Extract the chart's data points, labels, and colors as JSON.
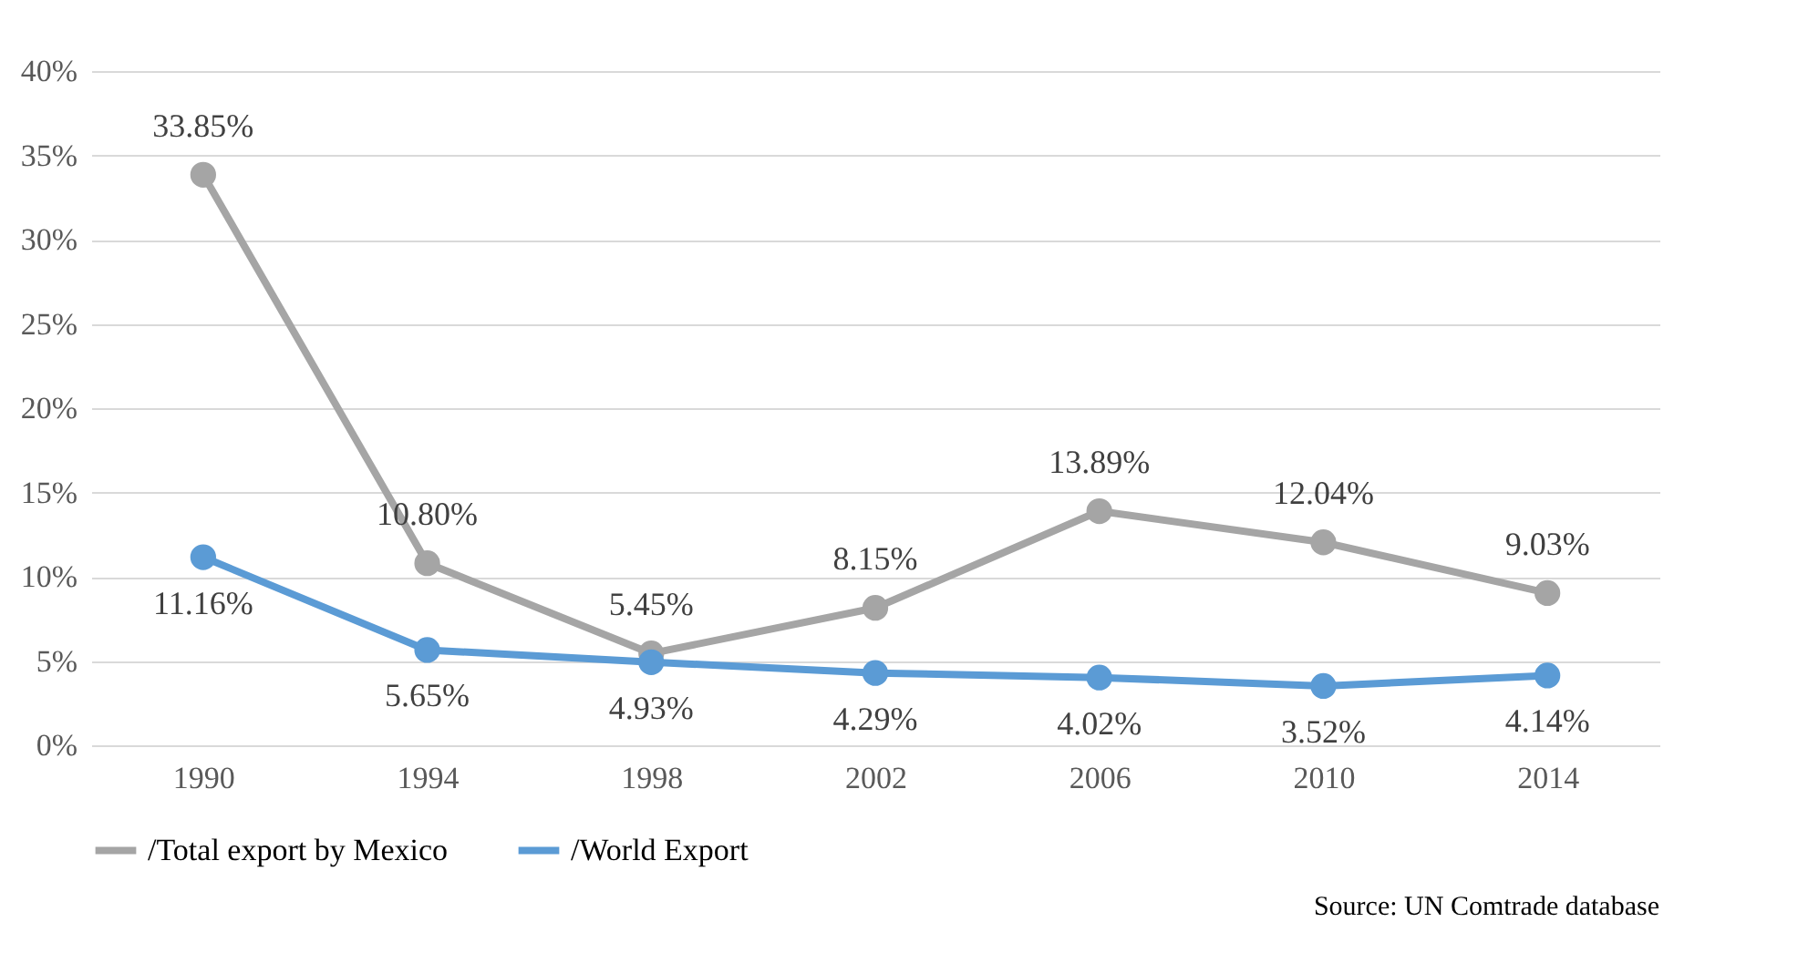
{
  "chart_data": {
    "type": "line",
    "categories": [
      "1990",
      "1994",
      "1998",
      "2002",
      "2006",
      "2010",
      "2014"
    ],
    "series": [
      {
        "name": "/Total export by Mexico",
        "color": "#a5a5a5",
        "values": [
          33.85,
          10.8,
          5.45,
          8.15,
          13.89,
          12.04,
          9.03
        ],
        "value_labels": [
          "33.85%",
          "10.80%",
          "5.45%",
          "8.15%",
          "13.89%",
          "12.04%",
          "9.03%"
        ]
      },
      {
        "name": "/World Export",
        "color": "#5b9bd5",
        "values": [
          11.16,
          5.65,
          4.93,
          4.29,
          4.02,
          3.52,
          4.14
        ],
        "value_labels": [
          "11.16%",
          "5.65%",
          "4.93%",
          "4.29%",
          "4.02%",
          "3.52%",
          "4.14%"
        ]
      }
    ],
    "ylim": [
      0,
      40
    ],
    "yticks": [
      {
        "value": 0,
        "label": "0%"
      },
      {
        "value": 5,
        "label": "5%"
      },
      {
        "value": 10,
        "label": "10%"
      },
      {
        "value": 15,
        "label": "15%"
      },
      {
        "value": 20,
        "label": "20%"
      },
      {
        "value": 25,
        "label": "25%"
      },
      {
        "value": 30,
        "label": "30%"
      },
      {
        "value": 35,
        "label": "35%"
      },
      {
        "value": 40,
        "label": "40%"
      }
    ],
    "grid": "y",
    "marker": "circle",
    "line_style": "solid",
    "legend": "bottom",
    "annotations": [
      "Source: UN Comtrade database"
    ]
  }
}
